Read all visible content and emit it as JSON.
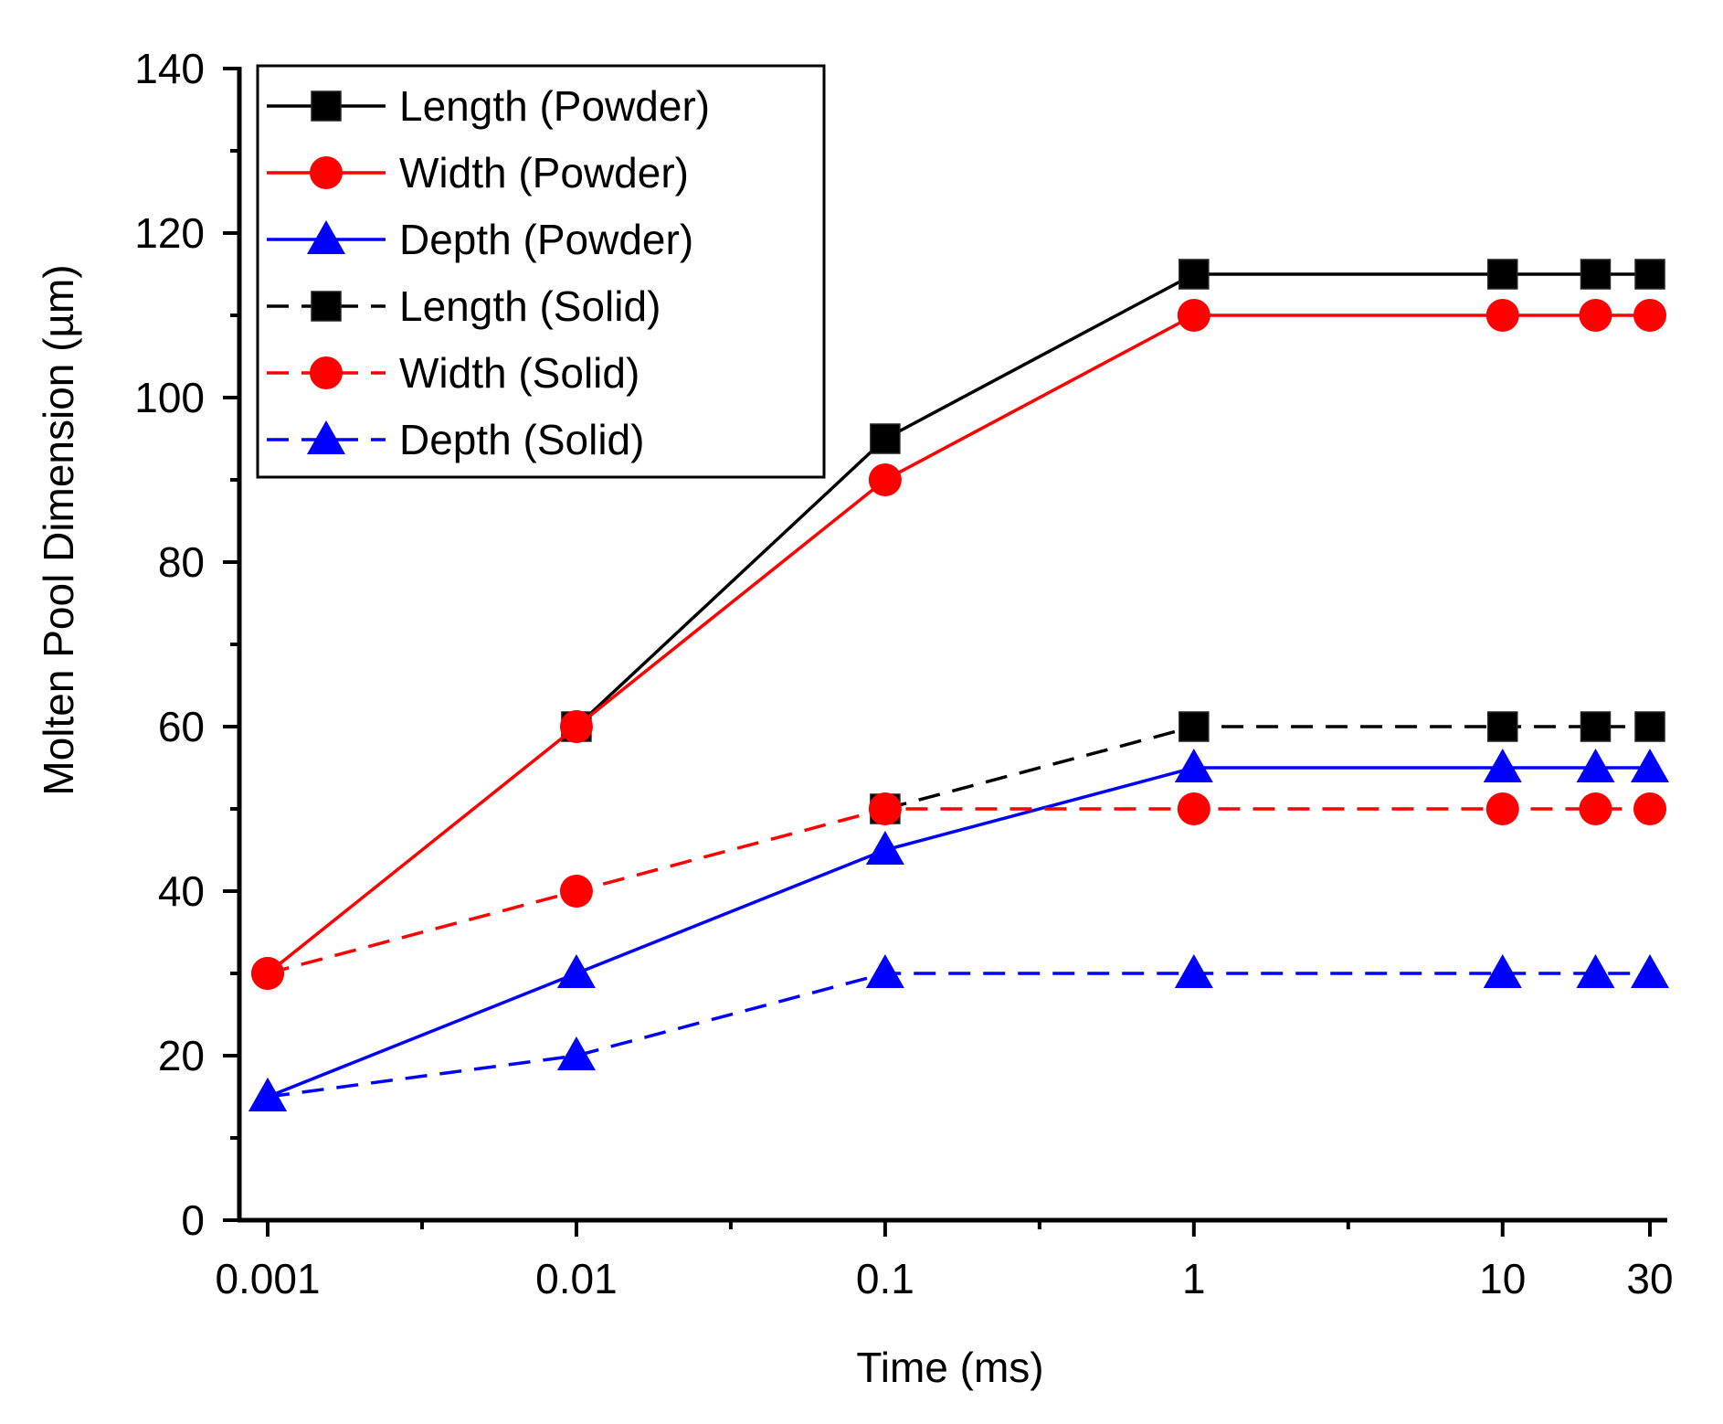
{
  "chart_data": {
    "type": "line",
    "title": "",
    "xlabel": "Time (ms)",
    "ylabel": "Molten Pool Dimension (µm)",
    "xscale": "log",
    "x_ticks": [
      0.001,
      0.01,
      0.1,
      1,
      10,
      30
    ],
    "x_tick_labels": [
      "0.001",
      "0.01",
      "0.1",
      "1",
      "10",
      "30"
    ],
    "xlim": [
      0.001,
      30
    ],
    "ylim": [
      0,
      140
    ],
    "y_ticks": [
      0,
      20,
      40,
      60,
      80,
      100,
      120,
      140
    ],
    "y_tick_labels": [
      "0",
      "20",
      "40",
      "60",
      "80",
      "100",
      "120",
      "140"
    ],
    "legend_position": "top-left",
    "x": [
      0.001,
      0.01,
      0.1,
      1,
      10,
      20,
      30
    ],
    "series": [
      {
        "name": "Length (Powder)",
        "color": "#000000",
        "marker": "square",
        "dash": "solid",
        "x": [
          0.01,
          0.1,
          1,
          10,
          20,
          30
        ],
        "values": [
          60,
          95,
          115,
          115,
          115,
          115
        ]
      },
      {
        "name": "Width (Powder)",
        "color": "#ff0000",
        "marker": "circle",
        "dash": "solid",
        "x": [
          0.001,
          0.01,
          0.1,
          1,
          10,
          20,
          30
        ],
        "values": [
          30,
          60,
          90,
          110,
          110,
          110,
          110
        ]
      },
      {
        "name": "Depth (Powder)",
        "color": "#0000ff",
        "marker": "triangle",
        "dash": "solid",
        "x": [
          0.001,
          0.01,
          0.1,
          1,
          10,
          20,
          30
        ],
        "values": [
          15,
          30,
          45,
          55,
          55,
          55,
          55
        ]
      },
      {
        "name": "Length (Solid)",
        "color": "#000000",
        "marker": "square",
        "dash": "dashed",
        "x": [
          0.1,
          1,
          10,
          20,
          30
        ],
        "values": [
          50,
          60,
          60,
          60,
          60
        ]
      },
      {
        "name": "Width (Solid)",
        "color": "#ff0000",
        "marker": "circle",
        "dash": "dashed",
        "x": [
          0.001,
          0.01,
          0.1,
          1,
          10,
          20,
          30
        ],
        "values": [
          30,
          40,
          50,
          50,
          50,
          50,
          50
        ]
      },
      {
        "name": "Depth (Solid)",
        "color": "#0000ff",
        "marker": "triangle",
        "dash": "dashed",
        "x": [
          0.001,
          0.01,
          0.1,
          1,
          10,
          20,
          30
        ],
        "values": [
          15,
          20,
          30,
          30,
          30,
          30,
          30
        ]
      }
    ]
  }
}
